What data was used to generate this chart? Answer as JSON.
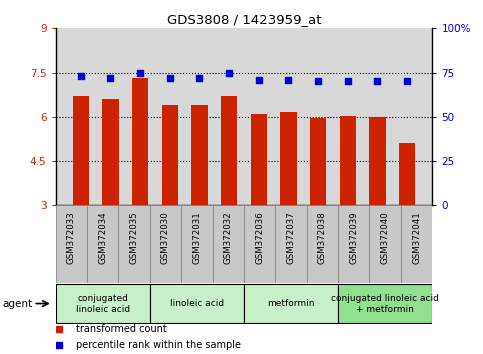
{
  "title": "GDS3808 / 1423959_at",
  "categories": [
    "GSM372033",
    "GSM372034",
    "GSM372035",
    "GSM372030",
    "GSM372031",
    "GSM372032",
    "GSM372036",
    "GSM372037",
    "GSM372038",
    "GSM372039",
    "GSM372040",
    "GSM372041"
  ],
  "bar_values": [
    6.7,
    6.62,
    7.3,
    6.4,
    6.4,
    6.7,
    6.1,
    6.15,
    5.97,
    6.03,
    6.0,
    5.1
  ],
  "scatter_values": [
    73,
    72,
    75,
    72,
    72,
    75,
    71,
    71,
    70,
    70,
    70,
    70
  ],
  "bar_color": "#cc2200",
  "scatter_color": "#0000cc",
  "ylim_left": [
    3,
    9
  ],
  "ylim_right": [
    0,
    100
  ],
  "yticks_left": [
    3,
    4.5,
    6,
    7.5,
    9
  ],
  "ytick_labels_left": [
    "3",
    "4.5",
    "6",
    "7.5",
    "9"
  ],
  "yticks_right": [
    0,
    25,
    50,
    75,
    100
  ],
  "ytick_labels_right": [
    "0",
    "25",
    "50",
    "75",
    "100%"
  ],
  "grid_values": [
    4.5,
    6.0,
    7.5
  ],
  "agent_groups": [
    {
      "label": "conjugated\nlinoleic acid",
      "start": 0,
      "end": 3,
      "color": "#c8f0c8"
    },
    {
      "label": "linoleic acid",
      "start": 3,
      "end": 6,
      "color": "#c8f0c8"
    },
    {
      "label": "metformin",
      "start": 6,
      "end": 9,
      "color": "#c8f0c8"
    },
    {
      "label": "conjugated linoleic acid\n+ metformin",
      "start": 9,
      "end": 12,
      "color": "#90e090"
    }
  ],
  "legend_items": [
    {
      "label": "transformed count",
      "color": "#cc2200"
    },
    {
      "label": "percentile rank within the sample",
      "color": "#0000cc"
    }
  ],
  "plot_bg_color": "#d8d8d8",
  "xlabel_bg_color": "#c8c8c8"
}
